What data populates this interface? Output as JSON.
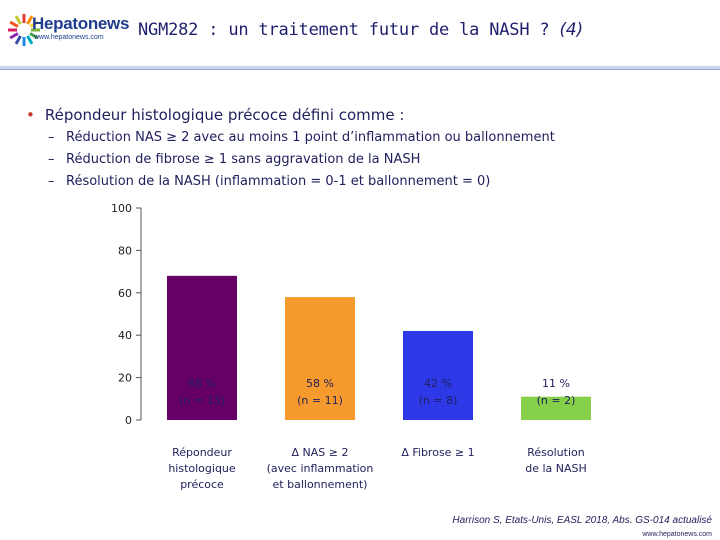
{
  "header": {
    "logo_text": "Hepatonews",
    "logo_url": "www.hepatonews.com",
    "title_main": "NGM282 : un traitement futur de la NASH ? ",
    "title_suffix": "(4)"
  },
  "content": {
    "bullet": "Répondeur histologique précoce défini comme :",
    "subitems": [
      "Réduction NAS ≥ 2 avec au moins 1 point d’inflammation ou ballonnement",
      "Réduction de fibrose ≥ 1 sans aggravation de la NASH",
      "Résolution de la NASH (inflammation = 0-1 et ballonnement = 0)"
    ]
  },
  "chart_data": {
    "type": "bar",
    "categories": [
      [
        "Répondeur",
        "histologique",
        "précoce"
      ],
      [
        "Δ NAS ≥ 2",
        "(avec inflammation",
        "et ballonnement)"
      ],
      [
        "Δ Fibrose ≥ 1"
      ],
      [
        "Résolution",
        "de la NASH"
      ]
    ],
    "values": [
      68,
      58,
      42,
      11
    ],
    "value_labels": [
      "68 %",
      "58 %",
      "42 %",
      "11 %"
    ],
    "n_labels": [
      "(n = 13)",
      "(n = 11)",
      "(n = 8)",
      "(n = 2)"
    ],
    "colors": [
      "#660066",
      "#f79a2e",
      "#2d39e6",
      "#86d04a"
    ],
    "ylim": [
      0,
      100
    ],
    "yticks": [
      "0",
      "20",
      "40",
      "60",
      "80",
      "100"
    ],
    "title": "",
    "xlabel": "",
    "ylabel": ""
  },
  "footer": {
    "citation": "Harrison S, Etats-Unis, EASL 2018, Abs. GS-014 actualisé",
    "url": "www.hepatonews.com"
  }
}
